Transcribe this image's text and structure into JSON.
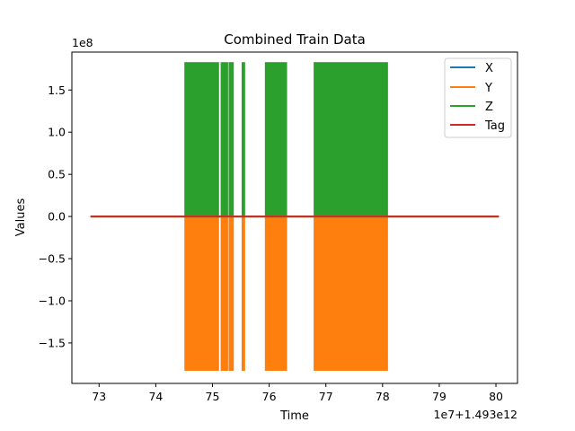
{
  "chart_data": {
    "type": "line",
    "title": "Combined Train Data",
    "xlabel": "Time",
    "ylabel": "Values",
    "y_offset_text": "1e8",
    "x_offset_text": "1e7+1.493e12",
    "xlim": [
      72.52,
      80.38
    ],
    "ylim": [
      -1.98,
      1.95
    ],
    "x_ticks": [
      73,
      74,
      75,
      76,
      77,
      78,
      79,
      80
    ],
    "x_tick_labels": [
      "73",
      "74",
      "75",
      "76",
      "77",
      "78",
      "79",
      "80"
    ],
    "y_ticks": [
      -1.5,
      -1.0,
      -0.5,
      0.0,
      0.5,
      1.0,
      1.5
    ],
    "y_tick_labels": [
      "−1.5",
      "−1.0",
      "−0.5",
      "0.0",
      "0.5",
      "1.0",
      "1.5"
    ],
    "grid": false,
    "legend_position": "top-right",
    "series": [
      {
        "name": "X",
        "color": "#1f77b4",
        "points": [
          [
            72.85,
            0.0
          ],
          [
            80.05,
            0.0
          ]
        ]
      },
      {
        "name": "Y",
        "color": "#ff7f0e",
        "min": -1.82,
        "max": 0.0,
        "active_intervals": [
          [
            74.52,
            75.1
          ],
          [
            75.16,
            75.26
          ],
          [
            75.3,
            75.36
          ],
          [
            75.53,
            75.56
          ],
          [
            75.94,
            76.3
          ],
          [
            76.8,
            78.08
          ]
        ],
        "points": [
          [
            72.85,
            0.0
          ],
          [
            80.05,
            0.0
          ]
        ]
      },
      {
        "name": "Z",
        "color": "#2ca02c",
        "min": 0.0,
        "max": 1.82,
        "active_intervals": [
          [
            74.52,
            75.1
          ],
          [
            75.16,
            75.26
          ],
          [
            75.3,
            75.36
          ],
          [
            75.53,
            75.56
          ],
          [
            75.94,
            76.3
          ],
          [
            76.8,
            78.08
          ]
        ],
        "points": [
          [
            72.85,
            0.0
          ],
          [
            80.05,
            0.0
          ]
        ]
      },
      {
        "name": "Tag",
        "color": "#d62728",
        "points": [
          [
            72.85,
            0.0
          ],
          [
            80.05,
            0.0
          ]
        ]
      }
    ]
  }
}
